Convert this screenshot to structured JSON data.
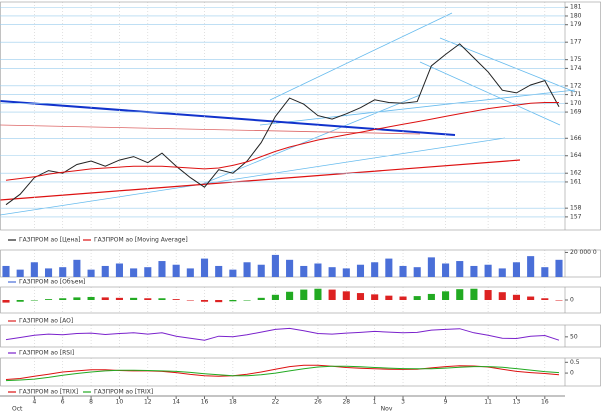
{
  "x_axis": {
    "categories": [
      null,
      null,
      "4",
      null,
      "6",
      null,
      "8",
      null,
      "10",
      null,
      "12",
      null,
      "14",
      null,
      "16",
      null,
      "18",
      null,
      null,
      "22",
      null,
      null,
      "26",
      null,
      "28",
      null,
      "1",
      null,
      "3",
      null,
      null,
      "9",
      null,
      null,
      "11",
      null,
      "13",
      null,
      "16",
      null
    ],
    "months": [
      "Oct",
      null,
      null,
      null,
      null,
      null,
      null,
      null,
      null,
      null,
      null,
      null,
      null,
      null,
      null,
      null,
      null,
      null,
      null,
      null,
      null,
      null,
      null,
      null,
      null,
      null,
      "Nov",
      null,
      null,
      null,
      null,
      null,
      null,
      null,
      null,
      null,
      null,
      null,
      null,
      null
    ]
  },
  "chart_data": [
    {
      "type": "line",
      "ylim": [
        155.5,
        181.6
      ],
      "yticks": [
        181,
        180,
        179,
        177,
        175,
        174,
        172,
        171,
        170,
        169,
        166,
        164,
        162,
        161,
        158,
        157
      ],
      "grid": true,
      "series": [
        {
          "name": "ГАЗПРОМ ао [Цена]",
          "color": "#222222",
          "values": [
            158.4,
            159.6,
            161.5,
            162.3,
            162.0,
            163.0,
            163.4,
            162.8,
            163.5,
            163.9,
            163.2,
            164.3,
            162.8,
            161.5,
            160.4,
            162.4,
            162.0,
            163.4,
            165.5,
            168.5,
            170.6,
            169.9,
            168.6,
            168.2,
            168.8,
            169.5,
            170.4,
            170.1,
            170.0,
            170.2,
            174.3,
            175.6,
            176.8,
            175.2,
            173.6,
            171.5,
            171.2,
            172.1,
            172.6,
            169.6
          ]
        },
        {
          "name": "ГАЗПРОМ ао [Moving Average]",
          "color": "#dd1111",
          "values": [
            161.2,
            161.4,
            161.6,
            161.9,
            162.1,
            162.3,
            162.5,
            162.6,
            162.7,
            162.8,
            162.8,
            162.8,
            162.7,
            162.6,
            162.5,
            162.6,
            162.9,
            163.3,
            163.9,
            164.5,
            165.0,
            165.4,
            165.8,
            166.1,
            166.4,
            166.7,
            167.0,
            167.3,
            167.6,
            167.9,
            168.2,
            168.5,
            168.8,
            169.1,
            169.4,
            169.6,
            169.8,
            170.0,
            170.1,
            170.1
          ]
        }
      ]
    },
    {
      "type": "bar",
      "ylim": [
        0,
        22000000
      ],
      "yticks": [
        {
          "value": 20000000,
          "label": "20 000 0"
        }
      ],
      "grid": false,
      "series": [
        {
          "name": "ГАЗПРОМ ао [Объем]",
          "color": "#4a6fd8",
          "values": [
            9000000,
            6000000,
            12000000,
            7000000,
            8000000,
            14000000,
            6000000,
            9000000,
            11000000,
            7000000,
            8000000,
            13000000,
            10000000,
            7000000,
            15000000,
            9000000,
            6000000,
            12000000,
            10000000,
            18000000,
            14000000,
            9000000,
            11000000,
            8000000,
            7000000,
            10000000,
            12000000,
            15000000,
            9000000,
            8000000,
            16000000,
            11000000,
            13000000,
            9000000,
            10000000,
            7000000,
            12000000,
            17000000,
            8000000,
            14000000
          ]
        }
      ]
    },
    {
      "type": "bar",
      "ylim": [
        -3,
        3
      ],
      "yticks": [
        0
      ],
      "grid": false,
      "up_color": "#22aa22",
      "down_color": "#dd2222",
      "series": [
        {
          "name": "ГАЗПРОМ ао [AO]",
          "color": "#dd2222",
          "values": [
            -0.6,
            -0.4,
            -0.1,
            0.2,
            0.4,
            0.6,
            0.7,
            0.6,
            0.5,
            0.5,
            0.4,
            0.4,
            0.2,
            -0.1,
            -0.4,
            -0.5,
            -0.3,
            0.0,
            0.5,
            1.2,
            1.9,
            2.4,
            2.6,
            2.4,
            2.0,
            1.6,
            1.3,
            1.0,
            0.8,
            0.9,
            1.4,
            2.0,
            2.5,
            2.6,
            2.3,
            1.8,
            1.2,
            0.8,
            0.4,
            -0.1
          ]
        }
      ]
    },
    {
      "type": "line",
      "ylim": [
        20,
        85
      ],
      "yticks": [
        50
      ],
      "grid": false,
      "series": [
        {
          "name": "ГАЗПРОМ ао [RSI]",
          "color": "#7a22cc",
          "values": [
            42,
            48,
            55,
            58,
            56,
            60,
            61,
            57,
            60,
            62,
            58,
            62,
            52,
            46,
            40,
            52,
            50,
            56,
            64,
            72,
            75,
            68,
            60,
            58,
            61,
            63,
            66,
            64,
            62,
            63,
            70,
            72,
            74,
            62,
            55,
            46,
            45,
            52,
            54,
            40
          ]
        }
      ]
    },
    {
      "type": "line",
      "ylim": [
        -0.6,
        0.7
      ],
      "yticks": [
        0.5,
        0
      ],
      "grid": false,
      "series": [
        {
          "name": "ГАЗПРОМ ао [TRIX]",
          "color": "#dd1111",
          "values": [
            -0.3,
            -0.25,
            -0.15,
            -0.05,
            0.05,
            0.1,
            0.15,
            0.15,
            0.12,
            0.1,
            0.1,
            0.08,
            0.02,
            -0.06,
            -0.12,
            -0.15,
            -0.12,
            -0.05,
            0.05,
            0.18,
            0.3,
            0.36,
            0.36,
            0.32,
            0.26,
            0.22,
            0.2,
            0.18,
            0.17,
            0.18,
            0.24,
            0.3,
            0.34,
            0.33,
            0.28,
            0.18,
            0.08,
            0.02,
            -0.02,
            -0.08
          ]
        },
        {
          "name": "ГАЗПРОМ ао [TRIX]",
          "color": "#22aa22",
          "values": [
            -0.35,
            -0.32,
            -0.28,
            -0.2,
            -0.1,
            -0.02,
            0.05,
            0.1,
            0.13,
            0.13,
            0.12,
            0.1,
            0.08,
            0.03,
            -0.03,
            -0.08,
            -0.12,
            -0.12,
            -0.08,
            0.0,
            0.1,
            0.2,
            0.28,
            0.32,
            0.32,
            0.29,
            0.26,
            0.23,
            0.21,
            0.2,
            0.2,
            0.23,
            0.27,
            0.3,
            0.3,
            0.27,
            0.21,
            0.14,
            0.07,
            0.02
          ]
        }
      ]
    }
  ]
}
